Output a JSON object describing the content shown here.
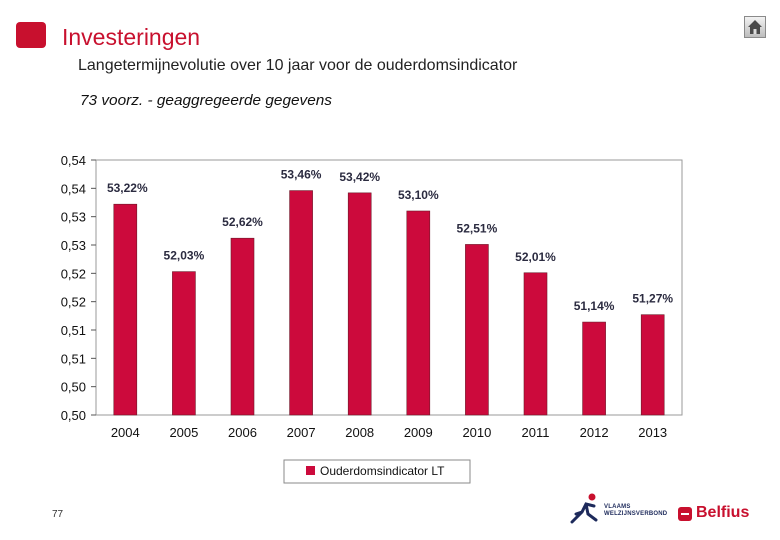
{
  "header": {
    "title": "Investeringen",
    "subtitle": "Langetermijnevolutie over 10 jaar voor de ouderdomsindicator"
  },
  "footer": {
    "page_number": "77",
    "vwv_logo_line1": "VLAAMS",
    "vwv_logo_line2": "WELZIJNSVERBOND",
    "belfius_logo_text": "Belfius"
  },
  "icons": {
    "home": "home-icon",
    "brand": "brand-square-icon"
  },
  "colors": {
    "accent": "#c8102e",
    "bar": "#cc0a3c"
  },
  "chart_data": {
    "type": "bar",
    "title": "73 voorz. - geaggregeerde gegevens",
    "xlabel": "",
    "ylabel": "",
    "categories": [
      "2004",
      "2005",
      "2006",
      "2007",
      "2008",
      "2009",
      "2010",
      "2011",
      "2012",
      "2013"
    ],
    "series": [
      {
        "name": "Ouderdomsindicator LT",
        "values": [
          0.5322,
          0.5203,
          0.5262,
          0.5346,
          0.5342,
          0.531,
          0.5251,
          0.5201,
          0.5114,
          0.5127
        ],
        "labels": [
          "53,22%",
          "52,03%",
          "52,62%",
          "53,46%",
          "53,42%",
          "53,10%",
          "52,51%",
          "52,01%",
          "51,14%",
          "51,27%"
        ]
      }
    ],
    "ylim": [
      0.495,
      0.54
    ],
    "yticks": [
      0.54,
      0.535,
      0.53,
      0.525,
      0.52,
      0.515,
      0.51,
      0.505,
      0.5,
      0.495
    ],
    "ytick_labels": [
      "0,54",
      "0,54",
      "0,53",
      "0,53",
      "0,52",
      "0,52",
      "0,51",
      "0,51",
      "0,50",
      "0,50"
    ],
    "grid": false,
    "legend": "bottom"
  }
}
